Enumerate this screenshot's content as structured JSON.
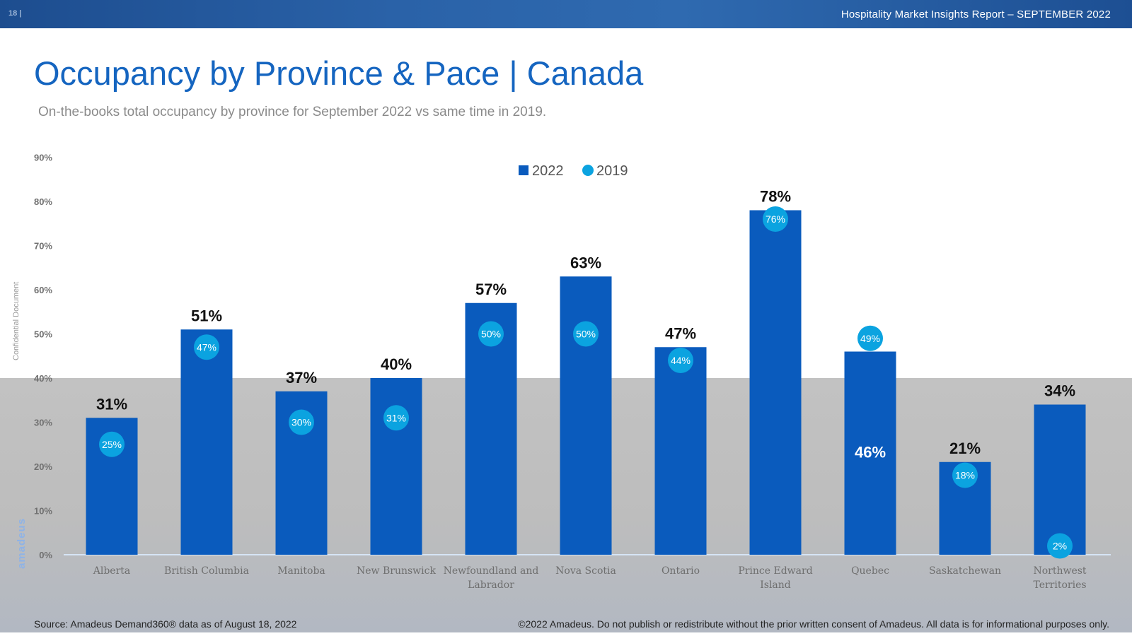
{
  "header": {
    "page_number": "18 |",
    "report_title": "Hospitality Market Insights Report – SEPTEMBER 2022"
  },
  "page": {
    "title": "Occupancy by Province & Pace | Canada",
    "subtitle": "On-the-books total occupancy by province for September 2022 vs same time in 2019.",
    "confidential": "Confidential Document",
    "logo": "amadeus"
  },
  "footer": {
    "source": "Source: Amadeus Demand360® data as of August 18, 2022",
    "copyright": "©2022 Amadeus. Do not publish or redistribute without the prior written consent of Amadeus. All data is for informational purposes only."
  },
  "colors": {
    "bar": "#0a5bbd",
    "dot": "#0ba3e0",
    "title": "#1565c0"
  },
  "chart_data": {
    "type": "bar",
    "title": "",
    "xlabel": "",
    "ylabel": "",
    "ylim": [
      0,
      90
    ],
    "yticks": [
      0,
      10,
      20,
      30,
      40,
      50,
      60,
      70,
      80,
      90
    ],
    "ytick_labels": [
      "0%",
      "10%",
      "20%",
      "30%",
      "40%",
      "50%",
      "60%",
      "70%",
      "80%",
      "90%"
    ],
    "legend": [
      "2022",
      "2019"
    ],
    "legend_position": "top-center",
    "categories": [
      [
        "Alberta"
      ],
      [
        "British Columbia"
      ],
      [
        "Manitoba"
      ],
      [
        "New Brunswick"
      ],
      [
        "Newfoundland and",
        "Labrador"
      ],
      [
        "Nova Scotia"
      ],
      [
        "Ontario"
      ],
      [
        "Prince Edward",
        "Island"
      ],
      [
        "Quebec"
      ],
      [
        "Saskatchewan"
      ],
      [
        "Northwest",
        "Territories"
      ]
    ],
    "series": [
      {
        "name": "2022",
        "marker": "bar",
        "values": [
          31,
          51,
          37,
          40,
          57,
          63,
          47,
          78,
          46,
          21,
          34
        ],
        "labels": [
          "31%",
          "51%",
          "37%",
          "40%",
          "57%",
          "63%",
          "47%",
          "78%",
          "46%",
          "21%",
          "34%"
        ]
      },
      {
        "name": "2019",
        "marker": "circle",
        "values": [
          25,
          47,
          30,
          31,
          50,
          50,
          44,
          76,
          49,
          18,
          2
        ],
        "labels": [
          "25%",
          "47%",
          "30%",
          "31%",
          "50%",
          "50%",
          "44%",
          "76%",
          "49%",
          "18%",
          "2%"
        ]
      }
    ]
  }
}
